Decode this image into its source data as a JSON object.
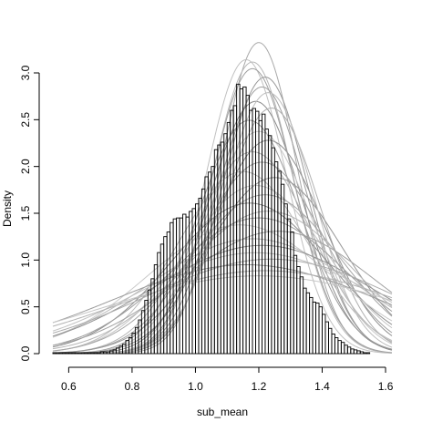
{
  "chart_data": {
    "type": "bar",
    "description_free": true,
    "xlabel": "sub_mean",
    "ylabel": "Density",
    "xlim": [
      0.55,
      1.62
    ],
    "ylim": [
      0.0,
      3.0
    ],
    "x_ticks": [
      0.6,
      0.8,
      1.0,
      1.2,
      1.4,
      1.6
    ],
    "x_tick_labels": [
      "0.6",
      "0.8",
      "1.0",
      "1.2",
      "1.4",
      "1.6"
    ],
    "y_ticks": [
      0.0,
      0.5,
      1.0,
      1.5,
      2.0,
      2.5,
      3.0
    ],
    "y_tick_labels": [
      "0.0",
      "0.5",
      "1.0",
      "1.5",
      "2.0",
      "2.5",
      "3.0"
    ],
    "histogram": {
      "bin_width": 0.01,
      "bin_start": 0.55,
      "values": [
        0.01,
        0.01,
        0.01,
        0.01,
        0.01,
        0.01,
        0.01,
        0.01,
        0.01,
        0.01,
        0.01,
        0.01,
        0.01,
        0.01,
        0.01,
        0.02,
        0.02,
        0.02,
        0.03,
        0.04,
        0.06,
        0.08,
        0.1,
        0.14,
        0.17,
        0.22,
        0.28,
        0.36,
        0.46,
        0.57,
        0.68,
        0.8,
        0.95,
        1.08,
        1.17,
        1.25,
        1.3,
        1.4,
        1.44,
        1.45,
        1.45,
        1.49,
        1.46,
        1.52,
        1.55,
        1.6,
        1.66,
        1.76,
        1.89,
        1.94,
        2.0,
        2.18,
        2.23,
        2.26,
        2.35,
        2.47,
        2.6,
        2.65,
        2.88,
        2.83,
        2.85,
        2.76,
        2.6,
        2.62,
        2.59,
        2.49,
        2.56,
        2.4,
        2.33,
        2.2,
        2.05,
        1.95,
        1.81,
        1.6,
        1.44,
        1.3,
        1.05,
        0.93,
        0.82,
        0.7,
        0.65,
        0.6,
        0.55,
        0.54,
        0.5,
        0.42,
        0.34,
        0.27,
        0.21,
        0.17,
        0.14,
        0.12,
        0.09,
        0.07,
        0.05,
        0.04,
        0.03,
        0.02,
        0.01,
        0.01
      ]
    },
    "density_curves": [
      {
        "mean": 1.2,
        "sd": 0.12,
        "gray": "#a8a8a8"
      },
      {
        "mean": 1.18,
        "sd": 0.128,
        "gray": "#b8b8b8"
      },
      {
        "mean": 1.22,
        "sd": 0.135,
        "gray": "#999999"
      },
      {
        "mean": 1.16,
        "sd": 0.127,
        "gray": "#c0c0c0"
      },
      {
        "mean": 1.21,
        "sd": 0.14,
        "gray": "#a0a0a0"
      },
      {
        "mean": 1.19,
        "sd": 0.148,
        "gray": "#8c8c8c"
      },
      {
        "mean": 1.24,
        "sd": 0.152,
        "gray": "#b0b0b0"
      },
      {
        "mean": 1.17,
        "sd": 0.16,
        "gray": "#9a9a9a"
      },
      {
        "mean": 1.2,
        "sd": 0.168,
        "gray": "#c8c8c8"
      },
      {
        "mean": 1.23,
        "sd": 0.175,
        "gray": "#909090"
      },
      {
        "mean": 1.18,
        "sd": 0.185,
        "gray": "#b4b4b4"
      },
      {
        "mean": 1.21,
        "sd": 0.195,
        "gray": "#a4a4a4"
      },
      {
        "mean": 1.15,
        "sd": 0.205,
        "gray": "#bcbcbc"
      },
      {
        "mean": 1.25,
        "sd": 0.212,
        "gray": "#969696"
      },
      {
        "mean": 1.19,
        "sd": 0.222,
        "gray": "#c4c4c4"
      },
      {
        "mean": 1.22,
        "sd": 0.235,
        "gray": "#a6a6a6"
      },
      {
        "mean": 1.17,
        "sd": 0.248,
        "gray": "#8e8e8e"
      },
      {
        "mean": 1.23,
        "sd": 0.262,
        "gray": "#b6b6b6"
      },
      {
        "mean": 1.2,
        "sd": 0.275,
        "gray": "#9e9e9e"
      },
      {
        "mean": 1.14,
        "sd": 0.29,
        "gray": "#cacaca"
      },
      {
        "mean": 1.26,
        "sd": 0.305,
        "gray": "#a2a2a2"
      },
      {
        "mean": 1.18,
        "sd": 0.325,
        "gray": "#bababa"
      },
      {
        "mean": 1.21,
        "sd": 0.345,
        "gray": "#929292"
      },
      {
        "mean": 1.19,
        "sd": 0.37,
        "gray": "#c2c2c2"
      },
      {
        "mean": 1.24,
        "sd": 0.395,
        "gray": "#acacac"
      },
      {
        "mean": 1.16,
        "sd": 0.42,
        "gray": "#9c9c9c"
      },
      {
        "mean": 1.22,
        "sd": 0.45,
        "gray": "#b2b2b2"
      },
      {
        "mean": 1.2,
        "sd": 0.48,
        "gray": "#c6c6c6"
      },
      {
        "mean": 1.18,
        "sd": 0.131,
        "gray": "#9f9f9f"
      },
      {
        "mean": 1.23,
        "sd": 0.143,
        "gray": "#bdbdbd"
      }
    ]
  }
}
